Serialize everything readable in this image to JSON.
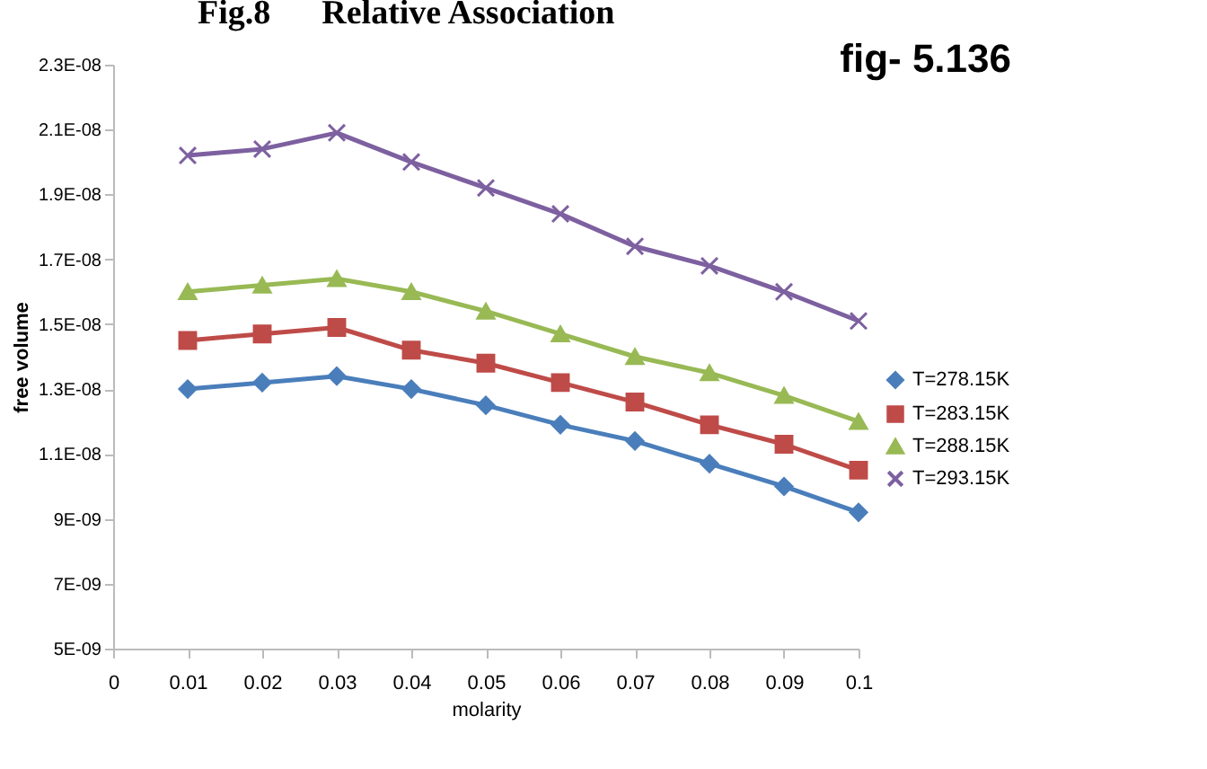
{
  "chart_data": {
    "type": "line",
    "title": "fig- 5.136",
    "xlabel": "molarity",
    "ylabel": "free volume",
    "annotations": [
      "Fig.8      Relative Association"
    ],
    "x": [
      0.01,
      0.02,
      0.03,
      0.04,
      0.05,
      0.06,
      0.07,
      0.08,
      0.09,
      0.1
    ],
    "series": [
      {
        "name": "T=278.15K",
        "color": "#4a7ebb",
        "marker": "diamond",
        "values": [
          1.3e-08,
          1.32e-08,
          1.34e-08,
          1.3e-08,
          1.25e-08,
          1.19e-08,
          1.14e-08,
          1.07e-08,
          1e-08,
          9.2e-09
        ]
      },
      {
        "name": "T=283.15K",
        "color": "#be4b48",
        "marker": "square",
        "values": [
          1.45e-08,
          1.47e-08,
          1.49e-08,
          1.42e-08,
          1.38e-08,
          1.32e-08,
          1.26e-08,
          1.19e-08,
          1.13e-08,
          1.05e-08
        ]
      },
      {
        "name": "T=288.15K",
        "color": "#98b954",
        "marker": "triangle",
        "values": [
          1.6e-08,
          1.62e-08,
          1.64e-08,
          1.6e-08,
          1.54e-08,
          1.47e-08,
          1.4e-08,
          1.35e-08,
          1.28e-08,
          1.2e-08
        ]
      },
      {
        "name": "T=293.15K",
        "color": "#7d60a0",
        "marker": "cross",
        "values": [
          2.02e-08,
          2.04e-08,
          2.09e-08,
          2e-08,
          1.92e-08,
          1.84e-08,
          1.74e-08,
          1.68e-08,
          1.6e-08,
          1.51e-08
        ]
      }
    ],
    "xlim": [
      0,
      0.1
    ],
    "xticks": [
      {
        "value": 0,
        "label": "0"
      },
      0.01,
      0.02,
      0.03,
      0.04,
      0.05,
      0.06,
      0.07,
      0.08,
      0.09,
      {
        "value": 0.1,
        "label": "0.1"
      }
    ],
    "ylim": [
      5e-09,
      2.3e-08
    ],
    "yticks": [
      {
        "value": 5e-09,
        "label": "5E-09"
      },
      {
        "value": 7e-09,
        "label": "7E-09"
      },
      {
        "value": 9e-09,
        "label": "9E-09"
      },
      {
        "value": 1.1e-08,
        "label": "1.1E-08"
      },
      {
        "value": 1.3e-08,
        "label": "1.3E-08"
      },
      {
        "value": 1.5e-08,
        "label": "1.5E-08"
      },
      {
        "value": 1.7e-08,
        "label": "1.7E-08"
      },
      {
        "value": 1.9e-08,
        "label": "1.9E-08"
      },
      {
        "value": 2.1e-08,
        "label": "2.1E-08"
      },
      {
        "value": 2.3e-08,
        "label": "2.3E-08"
      }
    ],
    "grid": false,
    "legend": "right",
    "line_style": "solid"
  }
}
